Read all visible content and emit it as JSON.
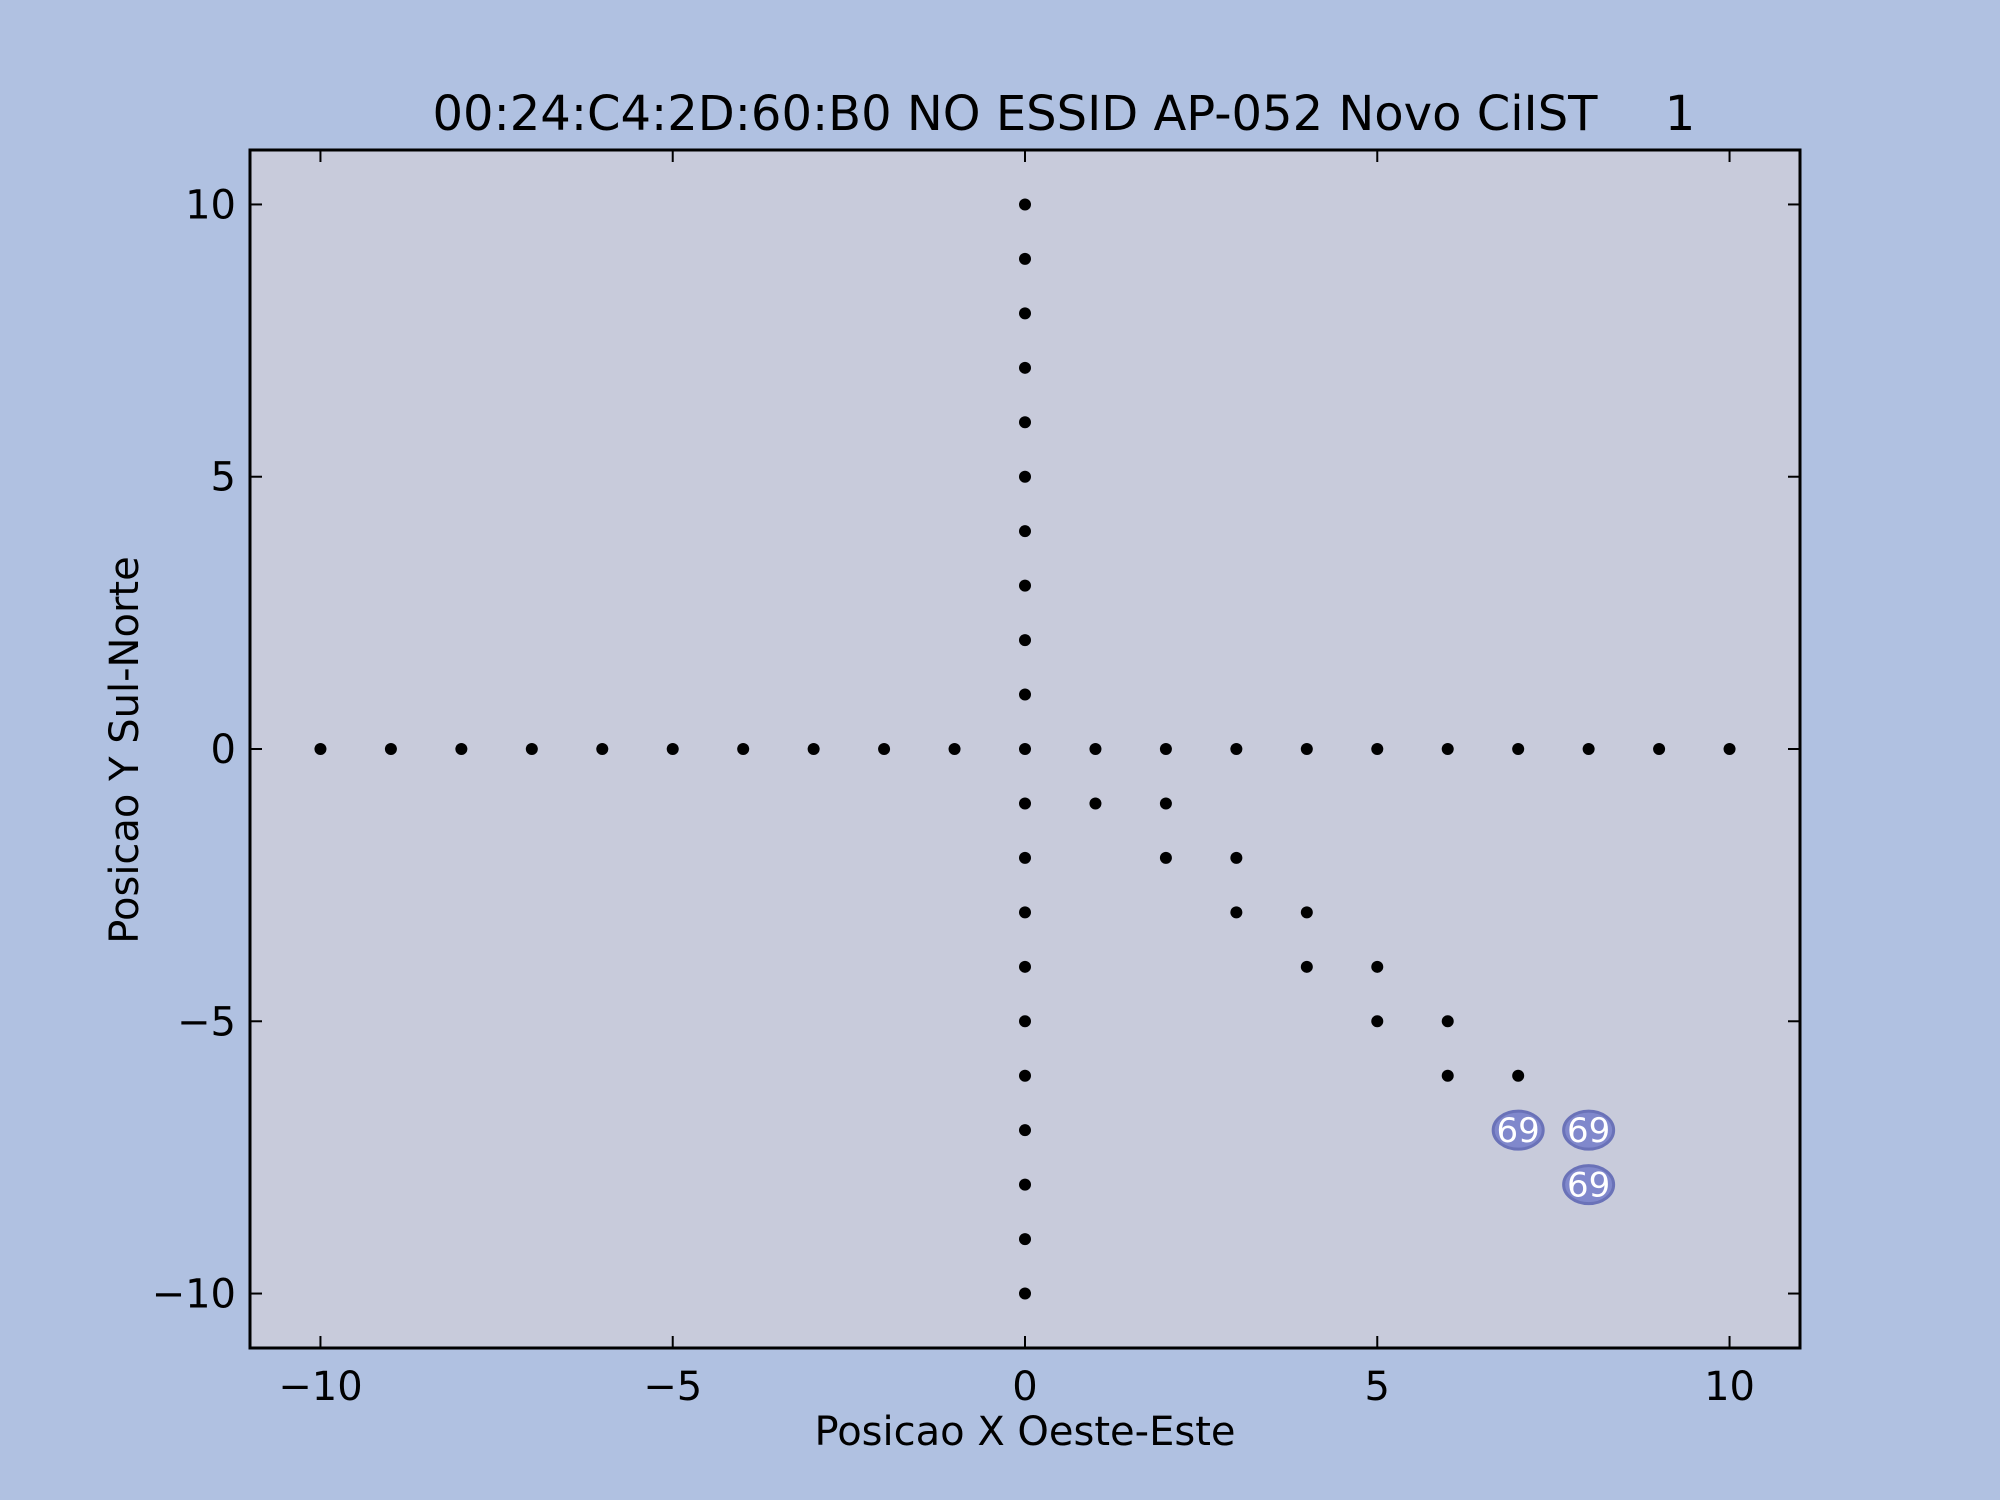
{
  "colors": {
    "figure_bg": "#b0c1e1",
    "plot_bg": "#c8cbdb",
    "point": "#000000",
    "annotation_fill": "#8088cc",
    "annotation_edge": "#6a72b8",
    "annotation_text": "#ffffff"
  },
  "chart_data": {
    "type": "scatter",
    "title": "00:24:C4:2D:60:B0 NO ESSID AP-052 Novo CiIST",
    "title_suffix": "1",
    "xlabel": "Posicao X Oeste-Este",
    "ylabel": "Posicao Y Sul-Norte",
    "xlim": [
      -11,
      11
    ],
    "ylim": [
      -11,
      11
    ],
    "xticks": [
      -10,
      -5,
      0,
      5,
      10
    ],
    "xtick_labels": [
      "−10",
      "−5",
      "0",
      "5",
      "10"
    ],
    "yticks": [
      10,
      5,
      0,
      -5,
      -10
    ],
    "ytick_labels": [
      "10",
      "5",
      "0",
      "−5",
      "−10"
    ],
    "grid": false,
    "points": [
      [
        -10,
        0
      ],
      [
        -9,
        0
      ],
      [
        -8,
        0
      ],
      [
        -7,
        0
      ],
      [
        -6,
        0
      ],
      [
        -5,
        0
      ],
      [
        -4,
        0
      ],
      [
        -3,
        0
      ],
      [
        -2,
        0
      ],
      [
        -1,
        0
      ],
      [
        0,
        0
      ],
      [
        1,
        0
      ],
      [
        2,
        0
      ],
      [
        3,
        0
      ],
      [
        4,
        0
      ],
      [
        5,
        0
      ],
      [
        6,
        0
      ],
      [
        7,
        0
      ],
      [
        8,
        0
      ],
      [
        9,
        0
      ],
      [
        10,
        0
      ],
      [
        0,
        1
      ],
      [
        0,
        2
      ],
      [
        0,
        3
      ],
      [
        0,
        4
      ],
      [
        0,
        5
      ],
      [
        0,
        6
      ],
      [
        0,
        7
      ],
      [
        0,
        8
      ],
      [
        0,
        9
      ],
      [
        0,
        10
      ],
      [
        0,
        -1
      ],
      [
        0,
        -2
      ],
      [
        0,
        -3
      ],
      [
        0,
        -4
      ],
      [
        0,
        -5
      ],
      [
        0,
        -6
      ],
      [
        0,
        -7
      ],
      [
        0,
        -8
      ],
      [
        0,
        -9
      ],
      [
        0,
        -10
      ],
      [
        1,
        -1
      ],
      [
        2,
        -1
      ],
      [
        2,
        -2
      ],
      [
        3,
        -2
      ],
      [
        3,
        -3
      ],
      [
        4,
        -3
      ],
      [
        4,
        -4
      ],
      [
        5,
        -4
      ],
      [
        5,
        -5
      ],
      [
        6,
        -5
      ],
      [
        6,
        -6
      ],
      [
        7,
        -6
      ],
      [
        7,
        -7
      ],
      [
        8,
        -7
      ],
      [
        8,
        -8
      ]
    ],
    "annotations": [
      {
        "x": 7,
        "y": -7,
        "text": "69"
      },
      {
        "x": 8,
        "y": -7,
        "text": "69"
      },
      {
        "x": 8,
        "y": -8,
        "text": "69"
      }
    ]
  }
}
